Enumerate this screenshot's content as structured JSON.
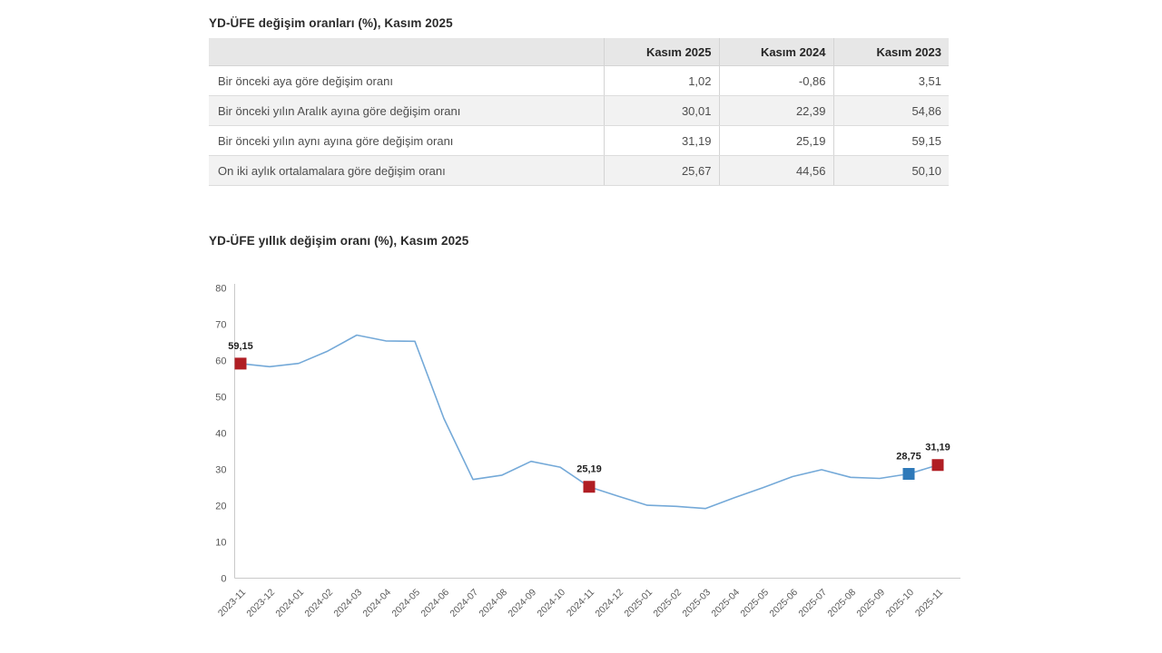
{
  "table_section": {
    "title": "YD-ÜFE değişim oranları (%), Kasım 2025",
    "columns": [
      "Kasım 2025",
      "Kasım 2024",
      "Kasım 2023"
    ],
    "rows": [
      {
        "label": "Bir önceki aya göre değişim oranı",
        "values": [
          "1,02",
          "-0,86",
          "3,51"
        ]
      },
      {
        "label": "Bir önceki yılın Aralık ayına göre değişim oranı",
        "values": [
          "30,01",
          "22,39",
          "54,86"
        ]
      },
      {
        "label": "Bir önceki yılın aynı ayına göre değişim oranı",
        "values": [
          "31,19",
          "25,19",
          "59,15"
        ]
      },
      {
        "label": "On iki aylık ortalamalara göre değişim oranı",
        "values": [
          "25,67",
          "44,56",
          "50,10"
        ]
      }
    ]
  },
  "chart_section": {
    "title": "YD-ÜFE yıllık değişim oranı (%), Kasım 2025"
  },
  "chart_data": {
    "type": "line",
    "title": "YD-ÜFE yıllık değişim oranı (%), Kasım 2025",
    "x": [
      "2023-11",
      "2023-12",
      "2024-01",
      "2024-02",
      "2024-03",
      "2024-04",
      "2024-05",
      "2024-06",
      "2024-07",
      "2024-08",
      "2024-09",
      "2024-10",
      "2024-11",
      "2024-12",
      "2025-01",
      "2025-02",
      "2025-03",
      "2025-04",
      "2025-05",
      "2025-06",
      "2025-07",
      "2025-08",
      "2025-09",
      "2025-10",
      "2025-11"
    ],
    "values": [
      59.15,
      58.3,
      59.2,
      62.6,
      67.0,
      65.4,
      65.3,
      44.0,
      27.2,
      28.4,
      32.2,
      30.6,
      25.19,
      22.6,
      20.1,
      19.8,
      19.2,
      22.2,
      25.0,
      28.0,
      29.9,
      27.8,
      27.5,
      28.75,
      31.19
    ],
    "ylim": [
      0,
      80
    ],
    "ytick_step": 10,
    "grid": false,
    "legend": "none",
    "line_color": "#74a9d8",
    "axis_color": "#c9c9c9",
    "tick_label_color": "#595959",
    "annotation_color": "#1f1f1f",
    "markers": [
      {
        "x": "2023-11",
        "value": 59.15,
        "label": "59,15",
        "color": "#b01e24"
      },
      {
        "x": "2024-11",
        "value": 25.19,
        "label": "25,19",
        "color": "#b01e24"
      },
      {
        "x": "2025-10",
        "value": 28.75,
        "label": "28,75",
        "color": "#2e79b9"
      },
      {
        "x": "2025-11",
        "value": 31.19,
        "label": "31,19",
        "color": "#b01e24"
      }
    ]
  }
}
